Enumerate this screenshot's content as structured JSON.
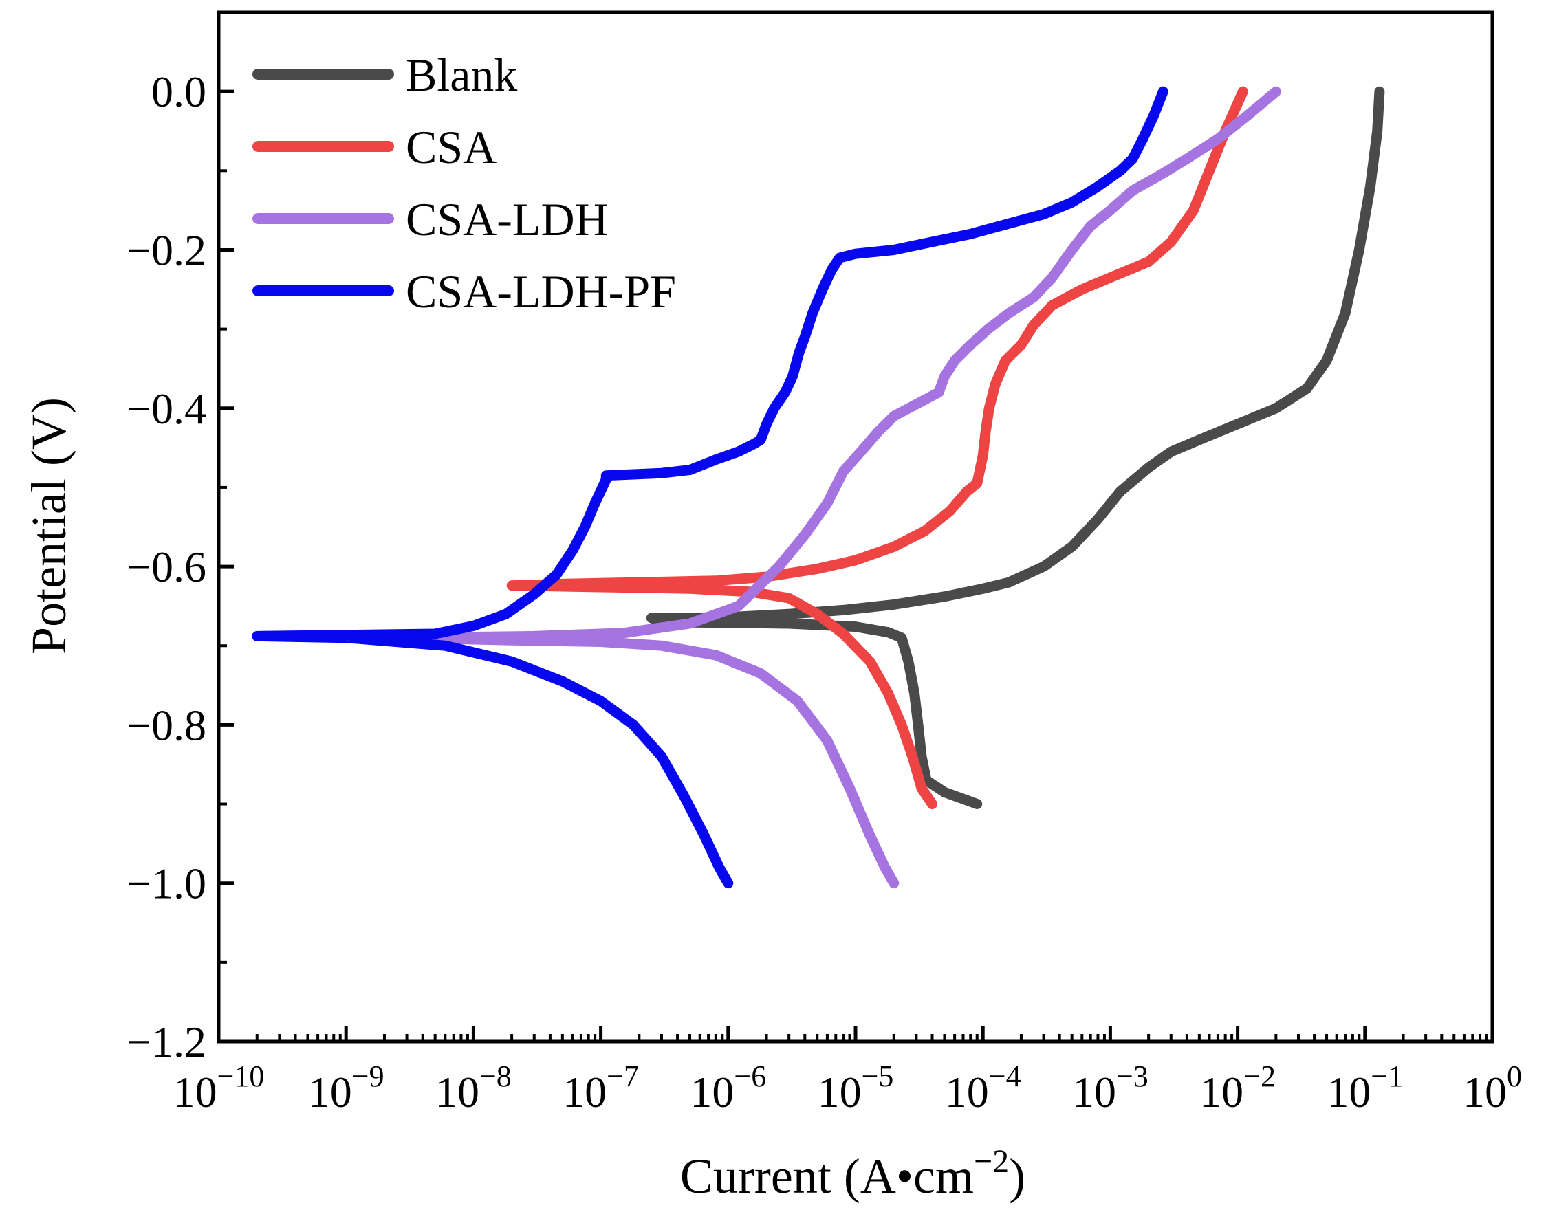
{
  "chart_data": {
    "type": "line",
    "title": "",
    "xlabel": "Current (A•cm−2)",
    "xlabel_base": "Current (A•cm",
    "xlabel_exp": "−2",
    "xlabel_close": ")",
    "ylabel": "Potential (V)",
    "xscale": "log",
    "xlim": [
      1e-10,
      1
    ],
    "ylim": [
      -1.2,
      0.1
    ],
    "grid": false,
    "legend_position": "top-left",
    "x_ticks": [
      {
        "base": "10",
        "exp": "−10",
        "value": 1e-10
      },
      {
        "base": "10",
        "exp": "−9",
        "value": 1e-09
      },
      {
        "base": "10",
        "exp": "−8",
        "value": 1e-08
      },
      {
        "base": "10",
        "exp": "−7",
        "value": 1e-07
      },
      {
        "base": "10",
        "exp": "−6",
        "value": 1e-06
      },
      {
        "base": "10",
        "exp": "−5",
        "value": 1e-05
      },
      {
        "base": "10",
        "exp": "−4",
        "value": 0.0001
      },
      {
        "base": "10",
        "exp": "−3",
        "value": 0.001
      },
      {
        "base": "10",
        "exp": "−2",
        "value": 0.01
      },
      {
        "base": "10",
        "exp": "−1",
        "value": 0.1
      },
      {
        "base": "10",
        "exp": "0",
        "value": 1
      }
    ],
    "y_ticks": [
      {
        "label": "0.0",
        "value": 0.0
      },
      {
        "label": "−0.2",
        "value": -0.2
      },
      {
        "label": "−0.4",
        "value": -0.4
      },
      {
        "label": "−0.6",
        "value": -0.6
      },
      {
        "label": "−0.8",
        "value": -0.8
      },
      {
        "label": "−1.0",
        "value": -1.0
      },
      {
        "label": "−1.2",
        "value": -1.2
      }
    ],
    "series": [
      {
        "name": "Blank",
        "color": "#4a4a4a",
        "points": [
          [
            9e-05,
            -0.9
          ],
          [
            5e-05,
            -0.885
          ],
          [
            3.6e-05,
            -0.87
          ],
          [
            3.3e-05,
            -0.84
          ],
          [
            3.1e-05,
            -0.8
          ],
          [
            2.9e-05,
            -0.76
          ],
          [
            2.6e-05,
            -0.72
          ],
          [
            2.3e-05,
            -0.69
          ],
          [
            1.8e-05,
            -0.683
          ],
          [
            1e-05,
            -0.676
          ],
          [
            3e-06,
            -0.672
          ],
          [
            1e-06,
            -0.671
          ],
          [
            3e-07,
            -0.67
          ],
          [
            2.5e-07,
            -0.665
          ],
          [
            4e-07,
            -0.665
          ],
          [
            1e-06,
            -0.664
          ],
          [
            3e-06,
            -0.66
          ],
          [
            8e-06,
            -0.655
          ],
          [
            2e-05,
            -0.648
          ],
          [
            5e-05,
            -0.638
          ],
          [
            0.0001,
            -0.628
          ],
          [
            0.00016,
            -0.62
          ],
          [
            0.0003,
            -0.6
          ],
          [
            0.0005,
            -0.575
          ],
          [
            0.0008,
            -0.54
          ],
          [
            0.0012,
            -0.505
          ],
          [
            0.002,
            -0.475
          ],
          [
            0.003,
            -0.455
          ],
          [
            0.005,
            -0.44
          ],
          [
            0.01,
            -0.42
          ],
          [
            0.02,
            -0.4
          ],
          [
            0.035,
            -0.375
          ],
          [
            0.05,
            -0.34
          ],
          [
            0.07,
            -0.28
          ],
          [
            0.09,
            -0.2
          ],
          [
            0.11,
            -0.12
          ],
          [
            0.125,
            -0.05
          ],
          [
            0.13,
            0.0
          ]
        ]
      },
      {
        "name": "CSA",
        "color": "#ef4444",
        "points": [
          [
            4e-05,
            -0.9
          ],
          [
            3.3e-05,
            -0.88
          ],
          [
            2.8e-05,
            -0.84
          ],
          [
            2.3e-05,
            -0.8
          ],
          [
            1.8e-05,
            -0.76
          ],
          [
            1.3e-05,
            -0.72
          ],
          [
            8e-06,
            -0.685
          ],
          [
            5e-06,
            -0.66
          ],
          [
            3e-06,
            -0.64
          ],
          [
            1.5e-06,
            -0.632
          ],
          [
            5e-07,
            -0.628
          ],
          [
            1e-07,
            -0.626
          ],
          [
            2e-08,
            -0.624
          ],
          [
            5e-08,
            -0.622
          ],
          [
            2e-07,
            -0.62
          ],
          [
            8e-07,
            -0.618
          ],
          [
            2e-06,
            -0.613
          ],
          [
            5e-06,
            -0.603
          ],
          [
            1e-05,
            -0.592
          ],
          [
            2e-05,
            -0.575
          ],
          [
            3.5e-05,
            -0.555
          ],
          [
            5.5e-05,
            -0.53
          ],
          [
            7.5e-05,
            -0.505
          ],
          [
            9e-05,
            -0.495
          ],
          [
            0.0001,
            -0.46
          ],
          [
            0.000105,
            -0.43
          ],
          [
            0.000112,
            -0.4
          ],
          [
            0.000125,
            -0.37
          ],
          [
            0.00015,
            -0.34
          ],
          [
            0.0002,
            -0.32
          ],
          [
            0.00025,
            -0.295
          ],
          [
            0.00035,
            -0.27
          ],
          [
            0.0006,
            -0.25
          ],
          [
            0.001,
            -0.235
          ],
          [
            0.002,
            -0.215
          ],
          [
            0.003,
            -0.19
          ],
          [
            0.0045,
            -0.15
          ],
          [
            0.006,
            -0.1
          ],
          [
            0.008,
            -0.05
          ],
          [
            0.011,
            0.0
          ]
        ]
      },
      {
        "name": "CSA-LDH",
        "color": "#a674e0",
        "points": [
          [
            2e-05,
            -1.0
          ],
          [
            1.7e-05,
            -0.98
          ],
          [
            1.3e-05,
            -0.94
          ],
          [
            9e-06,
            -0.88
          ],
          [
            6e-06,
            -0.82
          ],
          [
            3.5e-06,
            -0.77
          ],
          [
            1.8e-06,
            -0.735
          ],
          [
            8e-07,
            -0.712
          ],
          [
            3e-07,
            -0.7
          ],
          [
            1e-07,
            -0.695
          ],
          [
            2e-08,
            -0.693
          ],
          [
            3e-09,
            -0.69
          ],
          [
            3e-08,
            -0.688
          ],
          [
            1.5e-07,
            -0.684
          ],
          [
            5e-07,
            -0.672
          ],
          [
            1.2e-06,
            -0.65
          ],
          [
            2.5e-06,
            -0.6
          ],
          [
            4e-06,
            -0.56
          ],
          [
            6e-06,
            -0.52
          ],
          [
            8e-06,
            -0.48
          ],
          [
            1.1e-05,
            -0.455
          ],
          [
            1.5e-05,
            -0.43
          ],
          [
            2e-05,
            -0.41
          ],
          [
            3e-05,
            -0.395
          ],
          [
            4.5e-05,
            -0.38
          ],
          [
            5e-05,
            -0.36
          ],
          [
            6e-05,
            -0.34
          ],
          [
            8e-05,
            -0.32
          ],
          [
            0.00011,
            -0.3
          ],
          [
            0.00016,
            -0.28
          ],
          [
            0.00025,
            -0.26
          ],
          [
            0.00035,
            -0.235
          ],
          [
            0.0005,
            -0.2
          ],
          [
            0.0007,
            -0.17
          ],
          [
            0.001,
            -0.15
          ],
          [
            0.0015,
            -0.125
          ],
          [
            0.0025,
            -0.105
          ],
          [
            0.004,
            -0.085
          ],
          [
            0.007,
            -0.06
          ],
          [
            0.012,
            -0.03
          ],
          [
            0.02,
            0.0
          ]
        ]
      },
      {
        "name": "CSA-LDH-PF",
        "color": "#0808f0",
        "points": [
          [
            1e-06,
            -1.0
          ],
          [
            8.5e-07,
            -0.98
          ],
          [
            6.5e-07,
            -0.94
          ],
          [
            4.5e-07,
            -0.89
          ],
          [
            3e-07,
            -0.84
          ],
          [
            1.8e-07,
            -0.8
          ],
          [
            1e-07,
            -0.77
          ],
          [
            5e-08,
            -0.745
          ],
          [
            2e-08,
            -0.72
          ],
          [
            6e-09,
            -0.7
          ],
          [
            1e-09,
            -0.69
          ],
          [
            2e-10,
            -0.688
          ],
          [
            5e-09,
            -0.685
          ],
          [
            1e-08,
            -0.675
          ],
          [
            1.8e-08,
            -0.66
          ],
          [
            3e-08,
            -0.635
          ],
          [
            4.5e-08,
            -0.61
          ],
          [
            6e-08,
            -0.58
          ],
          [
            7.5e-08,
            -0.55
          ],
          [
            9e-08,
            -0.52
          ],
          [
            1.1e-07,
            -0.49
          ],
          [
            1.1e-07,
            -0.485
          ],
          [
            3e-07,
            -0.482
          ],
          [
            5e-07,
            -0.478
          ],
          [
            8e-07,
            -0.465
          ],
          [
            1.2e-06,
            -0.455
          ],
          [
            1.6e-06,
            -0.445
          ],
          [
            1.8e-06,
            -0.44
          ],
          [
            2e-06,
            -0.42
          ],
          [
            2.3e-06,
            -0.4
          ],
          [
            2.8e-06,
            -0.38
          ],
          [
            3.2e-06,
            -0.36
          ],
          [
            3.6e-06,
            -0.33
          ],
          [
            4e-06,
            -0.31
          ],
          [
            4.6e-06,
            -0.28
          ],
          [
            5.5e-06,
            -0.25
          ],
          [
            6.5e-06,
            -0.225
          ],
          [
            7.5e-06,
            -0.21
          ],
          [
            1e-05,
            -0.205
          ],
          [
            2e-05,
            -0.2
          ],
          [
            4e-05,
            -0.19
          ],
          [
            8e-05,
            -0.18
          ],
          [
            0.00015,
            -0.168
          ],
          [
            0.0003,
            -0.155
          ],
          [
            0.0005,
            -0.14
          ],
          [
            0.0008,
            -0.12
          ],
          [
            0.0012,
            -0.1
          ],
          [
            0.0015,
            -0.085
          ],
          [
            0.0018,
            -0.06
          ],
          [
            0.0022,
            -0.03
          ],
          [
            0.0026,
            0.0
          ]
        ]
      }
    ]
  }
}
